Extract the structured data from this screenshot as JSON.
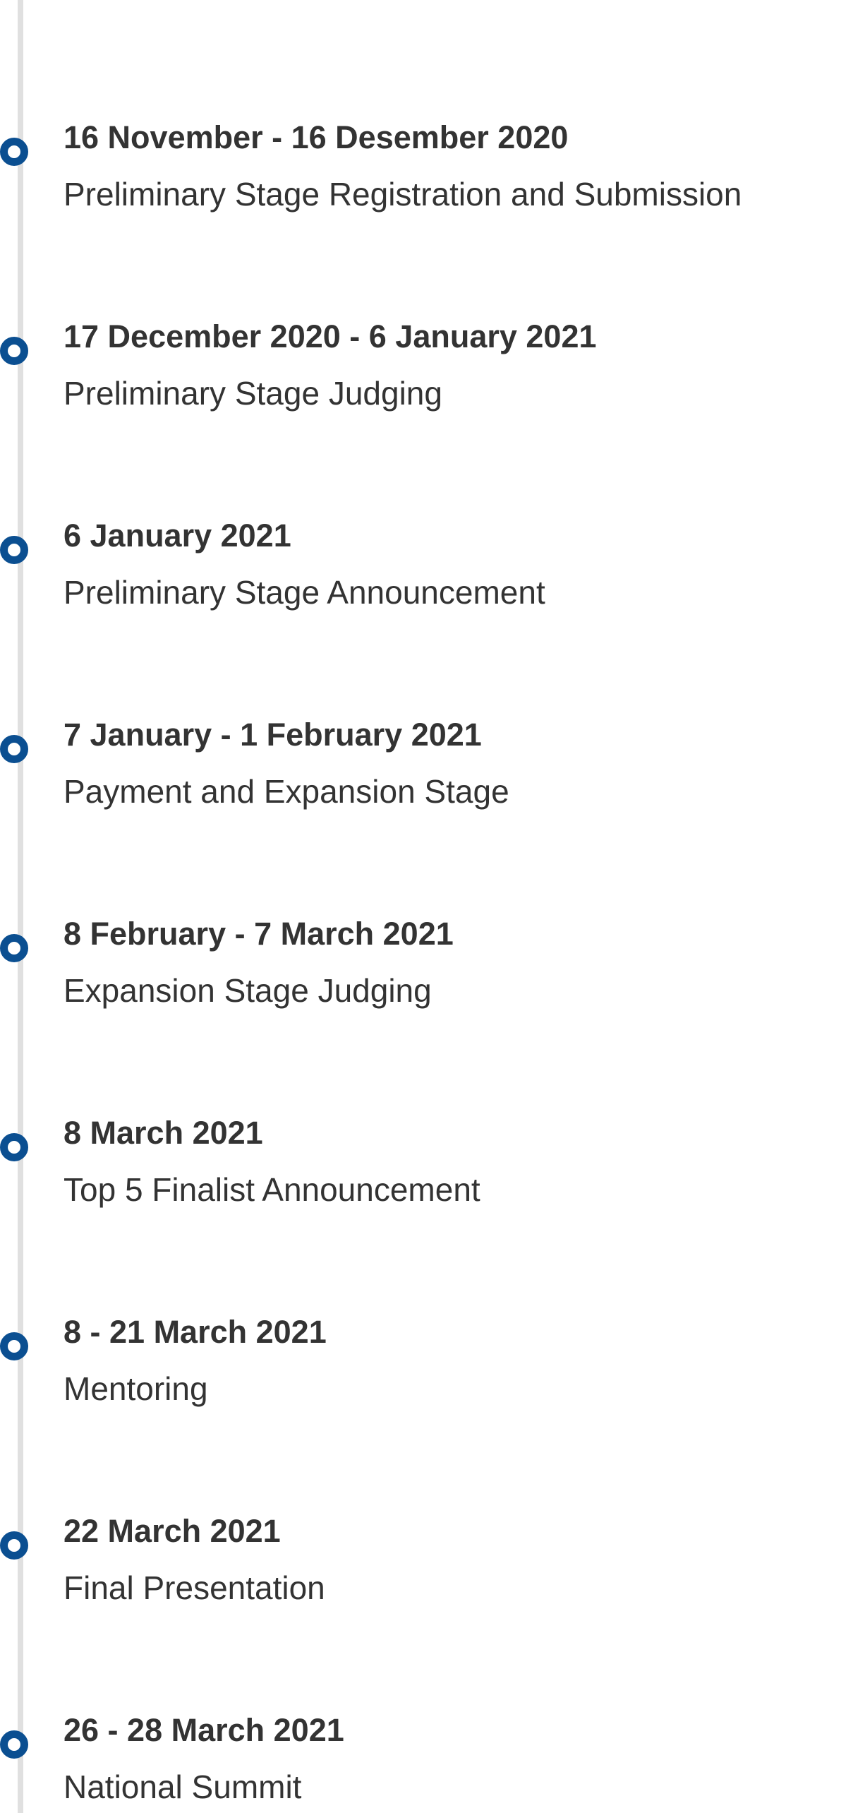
{
  "timeline": {
    "events": [
      {
        "date": "16 November - 16 Desember 2020",
        "title": "Preliminary Stage Registration and Submission"
      },
      {
        "date": "17 December 2020 - 6 January 2021",
        "title": "Preliminary Stage Judging"
      },
      {
        "date": "6 January 2021",
        "title": "Preliminary Stage Announcement"
      },
      {
        "date": "7 January - 1 February 2021",
        "title": "Payment and Expansion Stage"
      },
      {
        "date": "8 February - 7 March 2021",
        "title": "Expansion Stage Judging"
      },
      {
        "date": "8 March 2021",
        "title": "Top 5 Finalist Announcement"
      },
      {
        "date": "8 - 21 March 2021",
        "title": "Mentoring"
      },
      {
        "date": "22 March 2021",
        "title": "Final Presentation"
      },
      {
        "date": "26 - 28 March 2021",
        "title": "National Summit"
      }
    ]
  },
  "colors": {
    "dot_ring": "#0b4f91",
    "line": "#e0e0e0",
    "text": "#333333"
  }
}
